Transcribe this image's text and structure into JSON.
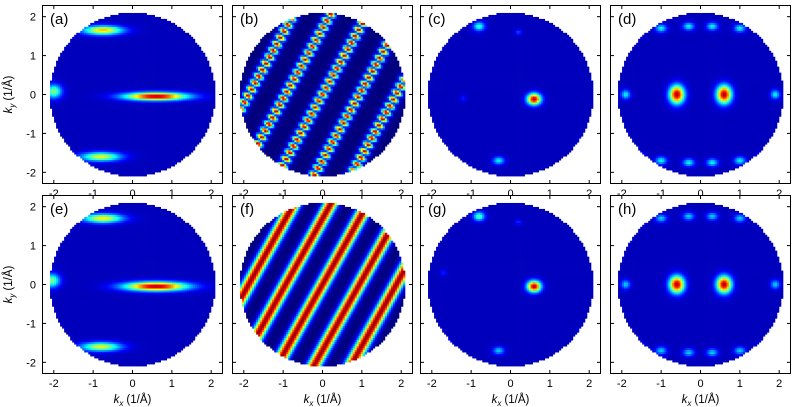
{
  "chart_data": {
    "type": "heatmap",
    "layout": "2x4 grid of panels",
    "colormap": [
      "#00007f",
      "#0000ff",
      "#007fff",
      "#00ffff",
      "#7fff7f",
      "#ffff00",
      "#ff7f00",
      "#ff0000",
      "#7f0000"
    ],
    "background": "#ffffff",
    "xlabel_var": "k",
    "xlabel_sub": "x",
    "xlabel_unit": "(1/Å)",
    "ylabel_var": "k",
    "ylabel_sub": "y",
    "ylabel_unit": "(1/Å)",
    "xlim": [
      -2.3,
      2.3
    ],
    "ylim": [
      -2.3,
      2.3
    ],
    "xticks": [
      "-2",
      "-1",
      "0",
      "1",
      "2"
    ],
    "yticks": [
      "2",
      "1",
      "0",
      "-1",
      "-2"
    ],
    "disk_radius": 2.1,
    "panels": [
      {
        "label": "(a)",
        "kind": "spots",
        "blobs": [
          {
            "x": 0.6,
            "y": -0.05,
            "sx": 0.55,
            "sy": 0.07,
            "amp": 1.0
          },
          {
            "x": -0.75,
            "y": 1.65,
            "sx": 0.35,
            "sy": 0.08,
            "amp": 0.7
          },
          {
            "x": -0.8,
            "y": -1.6,
            "sx": 0.35,
            "sy": 0.08,
            "amp": 0.6
          },
          {
            "x": -2.0,
            "y": 0.08,
            "sx": 0.14,
            "sy": 0.12,
            "amp": 0.5
          }
        ]
      },
      {
        "label": "(b)",
        "kind": "stripes",
        "stripe_angle_deg": 61,
        "stripe_period": 0.82,
        "stripe_width": 0.09,
        "dotted": true,
        "dot_period": 0.19
      },
      {
        "label": "(c)",
        "kind": "spots",
        "blobs": [
          {
            "x": 0.6,
            "y": -0.12,
            "sx": 0.12,
            "sy": 0.1,
            "amp": 1.0
          },
          {
            "x": -0.8,
            "y": 1.75,
            "sx": 0.1,
            "sy": 0.08,
            "amp": 0.4
          },
          {
            "x": -0.3,
            "y": -1.7,
            "sx": 0.1,
            "sy": 0.07,
            "amp": 0.35
          },
          {
            "x": -1.7,
            "y": -1.5,
            "sx": 0.06,
            "sy": 0.06,
            "amp": 0.2
          },
          {
            "x": 0.2,
            "y": 1.6,
            "sx": 0.06,
            "sy": 0.05,
            "amp": 0.15
          },
          {
            "x": 1.8,
            "y": -1.2,
            "sx": 0.06,
            "sy": 0.06,
            "amp": 0.12
          },
          {
            "x": -1.2,
            "y": -0.1,
            "sx": 0.06,
            "sy": 0.06,
            "amp": 0.1
          }
        ]
      },
      {
        "label": "(d)",
        "kind": "spots",
        "blobs": [
          {
            "x": -0.6,
            "y": 0.0,
            "sx": 0.13,
            "sy": 0.16,
            "amp": 1.0
          },
          {
            "x": 0.6,
            "y": 0.0,
            "sx": 0.13,
            "sy": 0.16,
            "amp": 1.0
          },
          {
            "x": -1.9,
            "y": 0.0,
            "sx": 0.08,
            "sy": 0.08,
            "amp": 0.35
          },
          {
            "x": 1.9,
            "y": 0.0,
            "sx": 0.08,
            "sy": 0.08,
            "amp": 0.35
          },
          {
            "x": -1.6,
            "y": 1.6,
            "sx": 0.1,
            "sy": 0.07,
            "amp": 0.35
          },
          {
            "x": -1.0,
            "y": 1.7,
            "sx": 0.1,
            "sy": 0.07,
            "amp": 0.35
          },
          {
            "x": -0.3,
            "y": 1.75,
            "sx": 0.1,
            "sy": 0.07,
            "amp": 0.35
          },
          {
            "x": 0.3,
            "y": 1.75,
            "sx": 0.1,
            "sy": 0.07,
            "amp": 0.35
          },
          {
            "x": 1.0,
            "y": 1.7,
            "sx": 0.1,
            "sy": 0.07,
            "amp": 0.35
          },
          {
            "x": 1.6,
            "y": 1.6,
            "sx": 0.1,
            "sy": 0.07,
            "amp": 0.35
          },
          {
            "x": -1.6,
            "y": -1.6,
            "sx": 0.1,
            "sy": 0.07,
            "amp": 0.35
          },
          {
            "x": -1.0,
            "y": -1.7,
            "sx": 0.1,
            "sy": 0.07,
            "amp": 0.35
          },
          {
            "x": -0.3,
            "y": -1.75,
            "sx": 0.1,
            "sy": 0.07,
            "amp": 0.35
          },
          {
            "x": 0.3,
            "y": -1.75,
            "sx": 0.1,
            "sy": 0.07,
            "amp": 0.35
          },
          {
            "x": 1.0,
            "y": -1.7,
            "sx": 0.1,
            "sy": 0.07,
            "amp": 0.35
          },
          {
            "x": 1.6,
            "y": -1.6,
            "sx": 0.1,
            "sy": 0.07,
            "amp": 0.35
          }
        ]
      },
      {
        "label": "(e)",
        "kind": "spots",
        "blobs": [
          {
            "x": 0.6,
            "y": -0.05,
            "sx": 0.55,
            "sy": 0.08,
            "amp": 1.0
          },
          {
            "x": -0.75,
            "y": 1.7,
            "sx": 0.35,
            "sy": 0.08,
            "amp": 0.65
          },
          {
            "x": -0.8,
            "y": -1.6,
            "sx": 0.35,
            "sy": 0.08,
            "amp": 0.6
          },
          {
            "x": -2.05,
            "y": 0.1,
            "sx": 0.14,
            "sy": 0.12,
            "amp": 0.5
          }
        ]
      },
      {
        "label": "(f)",
        "kind": "stripes",
        "stripe_angle_deg": 61,
        "stripe_period": 0.82,
        "stripe_width": 0.11,
        "dotted": false
      },
      {
        "label": "(g)",
        "kind": "spots",
        "blobs": [
          {
            "x": 0.6,
            "y": -0.05,
            "sx": 0.12,
            "sy": 0.1,
            "amp": 1.0
          },
          {
            "x": -0.8,
            "y": 1.75,
            "sx": 0.1,
            "sy": 0.08,
            "amp": 0.45
          },
          {
            "x": -0.3,
            "y": -1.7,
            "sx": 0.1,
            "sy": 0.07,
            "amp": 0.3
          },
          {
            "x": -1.6,
            "y": -1.5,
            "sx": 0.06,
            "sy": 0.06,
            "amp": 0.25
          },
          {
            "x": -1.7,
            "y": 0.3,
            "sx": 0.06,
            "sy": 0.06,
            "amp": 0.1
          },
          {
            "x": 1.8,
            "y": -1.2,
            "sx": 0.06,
            "sy": 0.06,
            "amp": 0.1
          },
          {
            "x": 0.2,
            "y": 1.6,
            "sx": 0.06,
            "sy": 0.05,
            "amp": 0.12
          }
        ]
      },
      {
        "label": "(h)",
        "kind": "spots",
        "blobs": [
          {
            "x": -0.6,
            "y": 0.0,
            "sx": 0.13,
            "sy": 0.15,
            "amp": 1.0
          },
          {
            "x": 0.6,
            "y": 0.0,
            "sx": 0.13,
            "sy": 0.15,
            "amp": 1.0
          },
          {
            "x": -1.9,
            "y": 0.0,
            "sx": 0.08,
            "sy": 0.08,
            "amp": 0.3
          },
          {
            "x": 1.9,
            "y": 0.0,
            "sx": 0.08,
            "sy": 0.08,
            "amp": 0.3
          },
          {
            "x": -1.6,
            "y": 1.6,
            "sx": 0.1,
            "sy": 0.07,
            "amp": 0.3
          },
          {
            "x": -1.0,
            "y": 1.7,
            "sx": 0.1,
            "sy": 0.07,
            "amp": 0.3
          },
          {
            "x": -0.3,
            "y": 1.75,
            "sx": 0.1,
            "sy": 0.07,
            "amp": 0.3
          },
          {
            "x": 0.3,
            "y": 1.75,
            "sx": 0.1,
            "sy": 0.07,
            "amp": 0.3
          },
          {
            "x": 1.0,
            "y": 1.7,
            "sx": 0.1,
            "sy": 0.07,
            "amp": 0.3
          },
          {
            "x": 1.6,
            "y": 1.6,
            "sx": 0.1,
            "sy": 0.07,
            "amp": 0.3
          },
          {
            "x": -1.6,
            "y": -1.6,
            "sx": 0.1,
            "sy": 0.07,
            "amp": 0.3
          },
          {
            "x": -1.0,
            "y": -1.7,
            "sx": 0.1,
            "sy": 0.07,
            "amp": 0.3
          },
          {
            "x": -0.3,
            "y": -1.75,
            "sx": 0.1,
            "sy": 0.07,
            "amp": 0.3
          },
          {
            "x": 0.3,
            "y": -1.75,
            "sx": 0.1,
            "sy": 0.07,
            "amp": 0.3
          },
          {
            "x": 1.0,
            "y": -1.7,
            "sx": 0.1,
            "sy": 0.07,
            "amp": 0.3
          },
          {
            "x": 1.6,
            "y": -1.6,
            "sx": 0.1,
            "sy": 0.07,
            "amp": 0.3
          }
        ]
      }
    ]
  }
}
